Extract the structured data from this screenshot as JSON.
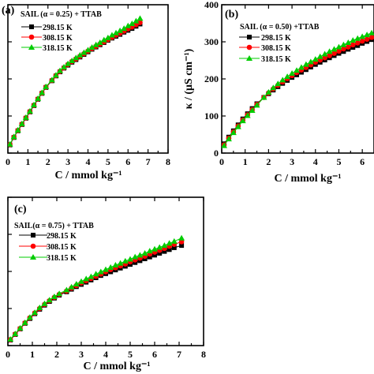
{
  "colors": {
    "298.15 K": "#000000",
    "308.15 K": "#ff0000",
    "318.15 K": "#00cc00"
  },
  "chart_data": [
    {
      "id": "a",
      "type": "scatter",
      "panel_label": "(a)",
      "legend_title": "SAIL (α = 0.25) + TTAB",
      "legend_position": "top-left",
      "xlabel": "C / mmol kg⁻¹",
      "ylabel": "",
      "xlim": [
        0,
        8
      ],
      "ylim": [
        0,
        400
      ],
      "xticks": [
        0,
        1,
        2,
        3,
        4,
        5,
        6,
        7,
        8
      ],
      "yticks": [],
      "x": [
        0.1,
        0.3,
        0.5,
        0.7,
        0.9,
        1.1,
        1.3,
        1.5,
        1.7,
        1.9,
        2.2,
        2.4,
        2.6,
        2.8,
        3.0,
        3.2,
        3.4,
        3.6,
        3.8,
        4.0,
        4.2,
        4.4,
        4.6,
        4.8,
        5.0,
        5.2,
        5.4,
        5.6,
        5.8,
        6.0,
        6.2,
        6.4,
        6.6
      ],
      "series": [
        {
          "name": "298.15 K",
          "marker": "square",
          "values": [
            22,
            42,
            60,
            77,
            94,
            111,
            128,
            145,
            161,
            177,
            195,
            208,
            219,
            229,
            237,
            245,
            252,
            259,
            266,
            273,
            280,
            286,
            292,
            298,
            304,
            310,
            315,
            320,
            326,
            331,
            336,
            342,
            348
          ]
        },
        {
          "name": "308.15 K",
          "marker": "circle",
          "values": [
            23,
            43,
            61,
            78,
            95,
            112,
            129,
            146,
            162,
            178,
            196,
            209,
            220,
            230,
            239,
            247,
            254,
            261,
            268,
            275,
            282,
            288,
            294,
            300,
            306,
            312,
            318,
            323,
            329,
            335,
            340,
            346,
            352
          ]
        },
        {
          "name": "318.15 K",
          "marker": "triangle",
          "values": [
            24,
            44,
            62,
            79,
            96,
            113,
            130,
            147,
            163,
            179,
            197,
            210,
            222,
            232,
            241,
            249,
            257,
            264,
            271,
            278,
            285,
            292,
            298,
            305,
            311,
            318,
            324,
            330,
            336,
            343,
            349,
            356,
            363
          ]
        }
      ]
    },
    {
      "id": "b",
      "type": "scatter",
      "panel_label": "(b)",
      "legend_title": "SAIL (α = 0.50) +TTAB",
      "legend_position": "top-left",
      "xlabel": "C / mmol kg⁻¹",
      "ylabel": "κ / (μS cm⁻¹)",
      "xlim": [
        0,
        6.5
      ],
      "ylim": [
        0,
        400
      ],
      "xticks": [
        0,
        1,
        2,
        3,
        4,
        5,
        6
      ],
      "yticks": [
        0,
        100,
        200,
        300,
        400
      ],
      "x": [
        0.1,
        0.3,
        0.5,
        0.7,
        0.9,
        1.1,
        1.3,
        1.5,
        1.8,
        2.0,
        2.2,
        2.4,
        2.6,
        2.8,
        3.0,
        3.2,
        3.4,
        3.6,
        3.8,
        4.0,
        4.2,
        4.4,
        4.6,
        4.8,
        5.0,
        5.2,
        5.4,
        5.6,
        5.8,
        6.0,
        6.2,
        6.4
      ],
      "series": [
        {
          "name": "298.15 K",
          "marker": "square",
          "values": [
            25,
            43,
            60,
            76,
            92,
            106,
            120,
            133,
            150,
            160,
            170,
            179,
            188,
            196,
            204,
            211,
            218,
            225,
            232,
            239,
            245,
            251,
            257,
            263,
            269,
            274,
            280,
            285,
            290,
            296,
            301,
            306
          ]
        },
        {
          "name": "308.15 K",
          "marker": "circle",
          "values": [
            22,
            40,
            57,
            73,
            89,
            103,
            117,
            131,
            150,
            162,
            173,
            183,
            192,
            201,
            209,
            217,
            224,
            231,
            238,
            245,
            251,
            257,
            263,
            269,
            275,
            281,
            286,
            292,
            297,
            302,
            307,
            312
          ]
        },
        {
          "name": "318.15 K",
          "marker": "triangle",
          "values": [
            20,
            38,
            55,
            71,
            87,
            101,
            115,
            129,
            150,
            164,
            176,
            187,
            197,
            206,
            215,
            223,
            231,
            239,
            246,
            253,
            260,
            267,
            274,
            280,
            286,
            292,
            298,
            304,
            309,
            314,
            319,
            324
          ]
        }
      ]
    },
    {
      "id": "c",
      "type": "scatter",
      "panel_label": "(c)",
      "legend_title": "SAIL(α = 0.75) + TTAB",
      "legend_position": "top-left",
      "xlabel": "C / mmol kg⁻¹",
      "ylabel": "",
      "xlim": [
        0,
        8
      ],
      "ylim": [
        0,
        400
      ],
      "xticks": [
        0,
        1,
        2,
        3,
        4,
        5,
        6,
        7,
        8
      ],
      "yticks": [],
      "x": [
        0.1,
        0.3,
        0.5,
        0.7,
        0.9,
        1.1,
        1.3,
        1.5,
        1.7,
        1.9,
        2.1,
        2.4,
        2.6,
        2.8,
        3.0,
        3.2,
        3.4,
        3.6,
        3.8,
        4.0,
        4.2,
        4.4,
        4.6,
        4.8,
        5.0,
        5.2,
        5.4,
        5.6,
        5.8,
        6.0,
        6.2,
        6.4,
        6.6,
        6.8,
        7.1
      ],
      "series": [
        {
          "name": "298.15 K",
          "marker": "square",
          "values": [
            15,
            30,
            45,
            60,
            73,
            86,
            98,
            109,
            119,
            128,
            136,
            145,
            152,
            159,
            165,
            171,
            177,
            183,
            189,
            194,
            199,
            204,
            209,
            214,
            219,
            224,
            229,
            234,
            239,
            244,
            249,
            254,
            259,
            264,
            270
          ]
        },
        {
          "name": "308.15 K",
          "marker": "circle",
          "values": [
            16,
            31,
            46,
            61,
            75,
            88,
            100,
            111,
            121,
            130,
            138,
            147,
            155,
            162,
            169,
            175,
            181,
            187,
            193,
            199,
            205,
            210,
            215,
            220,
            226,
            231,
            236,
            241,
            247,
            252,
            257,
            262,
            268,
            273,
            280
          ]
        },
        {
          "name": "318.15 K",
          "marker": "triangle",
          "values": [
            17,
            32,
            47,
            62,
            76,
            89,
            102,
            113,
            123,
            132,
            140,
            150,
            158,
            166,
            173,
            180,
            186,
            193,
            199,
            205,
            211,
            217,
            222,
            228,
            233,
            239,
            244,
            249,
            255,
            260,
            265,
            270,
            276,
            281,
            290
          ]
        }
      ]
    }
  ]
}
